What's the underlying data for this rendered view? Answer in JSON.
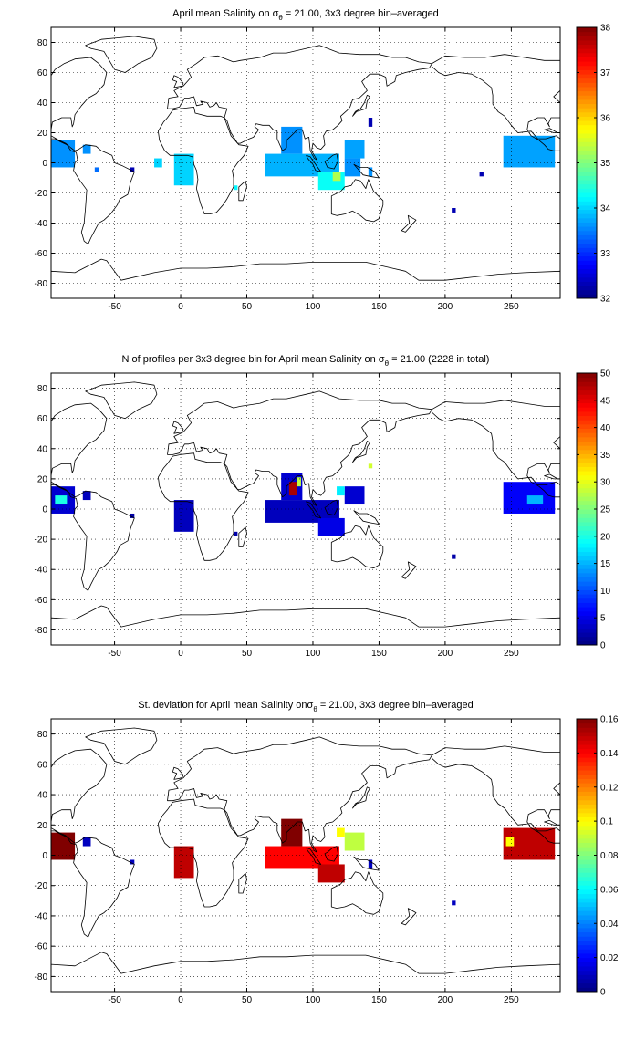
{
  "chart_data": [
    {
      "type": "heatmap",
      "title_main": "April mean Salinity on σ",
      "title_sub": "θ",
      "title_rest": " = 21.00, 3x3 degree bin–averaged",
      "xlim": [
        -98,
        287
      ],
      "ylim": [
        -90,
        90
      ],
      "xticks": [
        -50,
        0,
        50,
        100,
        150,
        200,
        250
      ],
      "yticks": [
        -80,
        -60,
        -40,
        -20,
        0,
        20,
        40,
        60,
        80
      ],
      "grid": true,
      "colorbar": {
        "min": 32,
        "max": 38,
        "ticks": [
          32,
          33,
          34,
          35,
          36,
          37,
          38
        ],
        "colormap": "jet"
      },
      "regions": [
        {
          "lon": [
            -98,
            -80
          ],
          "lat": [
            -3,
            15
          ],
          "value": 33.6
        },
        {
          "lon": [
            -74,
            -68
          ],
          "lat": [
            6,
            12
          ],
          "value": 33.6
        },
        {
          "lon": [
            -38,
            -35
          ],
          "lat": [
            -6,
            -3
          ],
          "value": 32.3
        },
        {
          "lon": [
            -65,
            -62
          ],
          "lat": [
            -6,
            -3
          ],
          "value": 33.4
        },
        {
          "lon": [
            -20,
            -14
          ],
          "lat": [
            -3,
            3
          ],
          "value": 34.0
        },
        {
          "lon": [
            -5,
            10
          ],
          "lat": [
            -15,
            6
          ],
          "value": 34.0
        },
        {
          "lon": [
            40,
            43
          ],
          "lat": [
            -18,
            -15
          ],
          "value": 34.2
        },
        {
          "lon": [
            76,
            92
          ],
          "lat": [
            6,
            24
          ],
          "value": 33.6
        },
        {
          "lon": [
            64,
            120
          ],
          "lat": [
            -9,
            6
          ],
          "value": 33.8
        },
        {
          "lon": [
            104,
            124
          ],
          "lat": [
            -18,
            -6
          ],
          "value": 34.3
        },
        {
          "lon": [
            115,
            121
          ],
          "lat": [
            -12,
            -6
          ],
          "value": 35.3
        },
        {
          "lon": [
            124,
            139
          ],
          "lat": [
            3,
            15
          ],
          "value": 33.7
        },
        {
          "lon": [
            124,
            136
          ],
          "lat": [
            -9,
            3
          ],
          "value": 33.6
        },
        {
          "lon": [
            142,
            145
          ],
          "lat": [
            24,
            30
          ],
          "value": 32.3
        },
        {
          "lon": [
            142,
            145
          ],
          "lat": [
            -9,
            -3
          ],
          "value": 33.6
        },
        {
          "lon": [
            244,
            283
          ],
          "lat": [
            -3,
            18
          ],
          "value": 33.7
        },
        {
          "lon": [
            226,
            229
          ],
          "lat": [
            -9,
            -6
          ],
          "value": 32.3
        },
        {
          "lon": [
            205,
            208
          ],
          "lat": [
            -33,
            -30
          ],
          "value": 32.3
        }
      ]
    },
    {
      "type": "heatmap",
      "title_main": "N of profiles per 3x3 degree bin for April mean Salinity on σ",
      "title_sub": "θ",
      "title_rest": " = 21.00 (2228 in total)",
      "xlim": [
        -98,
        287
      ],
      "ylim": [
        -90,
        90
      ],
      "xticks": [
        -50,
        0,
        50,
        100,
        150,
        200,
        250
      ],
      "yticks": [
        -80,
        -60,
        -40,
        -20,
        0,
        20,
        40,
        60,
        80
      ],
      "grid": true,
      "colorbar": {
        "min": 0,
        "max": 50,
        "ticks": [
          0,
          5,
          10,
          15,
          20,
          25,
          30,
          35,
          40,
          45,
          50
        ],
        "colormap": "jet"
      },
      "regions": [
        {
          "lon": [
            -98,
            -80
          ],
          "lat": [
            -3,
            15
          ],
          "value": 4
        },
        {
          "lon": [
            -95,
            -86
          ],
          "lat": [
            3,
            9
          ],
          "value": 20
        },
        {
          "lon": [
            -74,
            -68
          ],
          "lat": [
            6,
            12
          ],
          "value": 3
        },
        {
          "lon": [
            -38,
            -35
          ],
          "lat": [
            -6,
            -3
          ],
          "value": 2
        },
        {
          "lon": [
            -5,
            10
          ],
          "lat": [
            -15,
            6
          ],
          "value": 3
        },
        {
          "lon": [
            40,
            43
          ],
          "lat": [
            -18,
            -15
          ],
          "value": 2
        },
        {
          "lon": [
            76,
            92
          ],
          "lat": [
            6,
            24
          ],
          "value": 4
        },
        {
          "lon": [
            82,
            88
          ],
          "lat": [
            9,
            18
          ],
          "value": 48
        },
        {
          "lon": [
            88,
            91
          ],
          "lat": [
            15,
            21
          ],
          "value": 28
        },
        {
          "lon": [
            64,
            120
          ],
          "lat": [
            -9,
            6
          ],
          "value": 3
        },
        {
          "lon": [
            104,
            124
          ],
          "lat": [
            -18,
            -6
          ],
          "value": 5
        },
        {
          "lon": [
            124,
            139
          ],
          "lat": [
            3,
            15
          ],
          "value": 4
        },
        {
          "lon": [
            118,
            124
          ],
          "lat": [
            9,
            15
          ],
          "value": 18
        },
        {
          "lon": [
            142,
            145
          ],
          "lat": [
            27,
            30
          ],
          "value": 29
        },
        {
          "lon": [
            244,
            283
          ],
          "lat": [
            -3,
            18
          ],
          "value": 6
        },
        {
          "lon": [
            262,
            274
          ],
          "lat": [
            3,
            9
          ],
          "value": 15
        },
        {
          "lon": [
            205,
            208
          ],
          "lat": [
            -33,
            -30
          ],
          "value": 2
        }
      ]
    },
    {
      "type": "heatmap",
      "title_main": "St. deviation for April mean Salinity onσ",
      "title_sub": "θ",
      "title_rest": " = 21.00, 3x3 degree bin–averaged",
      "xlim": [
        -98,
        287
      ],
      "ylim": [
        -90,
        90
      ],
      "xticks": [
        -50,
        0,
        50,
        100,
        150,
        200,
        250
      ],
      "yticks": [
        -80,
        -60,
        -40,
        -20,
        0,
        20,
        40,
        60,
        80
      ],
      "grid": true,
      "colorbar": {
        "min": 0,
        "max": 0.16,
        "ticks": [
          0,
          0.02,
          0.04,
          0.06,
          0.08,
          0.1,
          0.12,
          0.14,
          0.16
        ],
        "colormap": "jet"
      },
      "regions": [
        {
          "lon": [
            -98,
            -80
          ],
          "lat": [
            -3,
            15
          ],
          "value": 0.16
        },
        {
          "lon": [
            -74,
            -68
          ],
          "lat": [
            6,
            12
          ],
          "value": 0.01
        },
        {
          "lon": [
            -38,
            -35
          ],
          "lat": [
            -6,
            -3
          ],
          "value": 0.01
        },
        {
          "lon": [
            -5,
            10
          ],
          "lat": [
            -15,
            6
          ],
          "value": 0.15
        },
        {
          "lon": [
            76,
            92
          ],
          "lat": [
            6,
            24
          ],
          "value": 0.16
        },
        {
          "lon": [
            64,
            120
          ],
          "lat": [
            -9,
            6
          ],
          "value": 0.14
        },
        {
          "lon": [
            104,
            124
          ],
          "lat": [
            -18,
            -6
          ],
          "value": 0.15
        },
        {
          "lon": [
            124,
            139
          ],
          "lat": [
            3,
            15
          ],
          "value": 0.09
        },
        {
          "lon": [
            118,
            124
          ],
          "lat": [
            12,
            18
          ],
          "value": 0.1
        },
        {
          "lon": [
            142,
            145
          ],
          "lat": [
            -9,
            -3
          ],
          "value": 0.01
        },
        {
          "lon": [
            244,
            283
          ],
          "lat": [
            -3,
            18
          ],
          "value": 0.15
        },
        {
          "lon": [
            246,
            252
          ],
          "lat": [
            6,
            12
          ],
          "value": 0.1
        },
        {
          "lon": [
            205,
            208
          ],
          "lat": [
            -33,
            -30
          ],
          "value": 0.01
        }
      ]
    }
  ]
}
